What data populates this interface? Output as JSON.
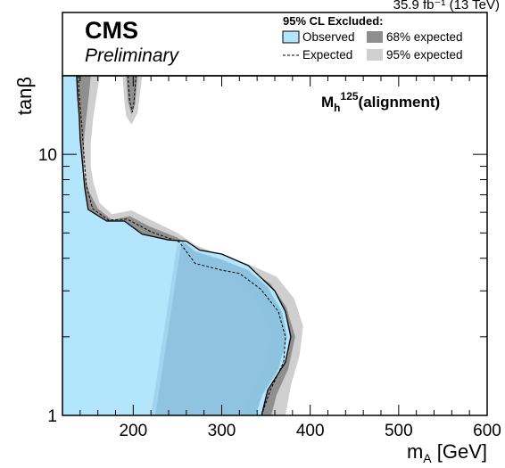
{
  "chart_data": {
    "type": "area",
    "top_label": "35.9 fb⁻¹ (13 TeV)",
    "xlabel": "m",
    "xlabel_sub": "A",
    "xlabel_unit": " [GeV]",
    "ylabel": "tanβ",
    "xlim": [
      120,
      600
    ],
    "ylim": [
      1,
      20
    ],
    "y_scale": "log",
    "x_ticks": [
      200,
      300,
      400,
      500,
      600
    ],
    "y_ticks": [
      {
        "value": 1,
        "label": "1"
      },
      {
        "value": 10,
        "label": "10"
      }
    ],
    "experiment": "CMS",
    "status": "Preliminary",
    "scenario": {
      "main": "M",
      "sub": "h",
      "sup": "125",
      "rest": "(alignment)"
    },
    "legend": {
      "title": "95% CL Excluded:",
      "position": "top-right",
      "items": [
        {
          "name": "Observed",
          "style": "filled",
          "color": "#b3e5fc"
        },
        {
          "name": "68% expected",
          "style": "filled",
          "color": "#8f8f8f"
        },
        {
          "name": "Expected",
          "style": "dashed-line",
          "color": "#000000"
        },
        {
          "name": "95% expected",
          "style": "filled",
          "color": "#cfcfcf"
        }
      ]
    },
    "series": [
      {
        "name": "95% expected",
        "color": "#cfcfcf",
        "boundary": [
          [
            162,
            20
          ],
          [
            160,
            18
          ],
          [
            155,
            14
          ],
          [
            152,
            11
          ],
          [
            152,
            9
          ],
          [
            155,
            7.8
          ],
          [
            162,
            6.5
          ],
          [
            176,
            5.9
          ],
          [
            198,
            6.1
          ],
          [
            220,
            5.6
          ],
          [
            250,
            5.0
          ],
          [
            270,
            4.5
          ],
          [
            300,
            4.1
          ],
          [
            330,
            3.8
          ],
          [
            362,
            3.4
          ],
          [
            382,
            2.8
          ],
          [
            392,
            2.2
          ],
          [
            388,
            1.7
          ],
          [
            378,
            1.3
          ],
          [
            372,
            1.0
          ]
        ]
      },
      {
        "name": "68% expected",
        "color": "#8f8f8f",
        "boundary": [
          [
            152,
            20
          ],
          [
            150,
            17
          ],
          [
            146,
            13
          ],
          [
            144,
            11
          ],
          [
            144,
            8.5
          ],
          [
            150,
            7.2
          ],
          [
            160,
            6.2
          ],
          [
            176,
            5.6
          ],
          [
            196,
            5.8
          ],
          [
            218,
            5.3
          ],
          [
            250,
            4.8
          ],
          [
            268,
            4.3
          ],
          [
            300,
            3.95
          ],
          [
            330,
            3.65
          ],
          [
            355,
            3.2
          ],
          [
            373,
            2.6
          ],
          [
            383,
            2.0
          ],
          [
            375,
            1.5
          ],
          [
            362,
            1.2
          ],
          [
            356,
            1.0
          ]
        ]
      },
      {
        "name": "Expected",
        "color": "#000000",
        "style": "dashed",
        "boundary": [
          [
            138,
            20
          ],
          [
            139,
            17
          ],
          [
            141,
            14
          ],
          [
            143,
            11.5
          ],
          [
            145,
            9.2
          ],
          [
            147,
            7.6
          ],
          [
            154,
            6.2
          ],
          [
            172,
            5.6
          ],
          [
            193,
            5.65
          ],
          [
            220,
            5.05
          ],
          [
            252,
            4.62
          ],
          [
            270,
            3.82
          ],
          [
            300,
            3.6
          ],
          [
            320,
            3.5
          ],
          [
            344,
            3.05
          ],
          [
            364,
            2.5
          ],
          [
            372,
            2.0
          ],
          [
            370,
            1.6
          ],
          [
            355,
            1.25
          ],
          [
            345,
            1.0
          ]
        ]
      },
      {
        "name": "Observed",
        "color": "#b3e5fc",
        "boundary": [
          [
            136,
            20
          ],
          [
            137,
            17
          ],
          [
            139,
            14
          ],
          [
            140,
            11.5
          ],
          [
            143,
            9
          ],
          [
            145,
            7.5
          ],
          [
            149,
            6.15
          ],
          [
            170,
            5.55
          ],
          [
            190,
            5.55
          ],
          [
            210,
            4.95
          ],
          [
            240,
            4.7
          ],
          [
            260,
            4.65
          ],
          [
            275,
            4.3
          ],
          [
            300,
            4.15
          ],
          [
            330,
            3.75
          ],
          [
            360,
            3.0
          ],
          [
            372,
            2.5
          ],
          [
            378,
            2.0
          ],
          [
            372,
            1.6
          ],
          [
            352,
            1.25
          ],
          [
            345,
            1.0
          ]
        ]
      }
    ],
    "band_below": [
      {
        "name": "Observed (dark overlay)",
        "color": "#6fa8c9",
        "boundary": [
          [
            255,
            4.7
          ],
          [
            270,
            4.25
          ],
          [
            300,
            3.95
          ],
          [
            330,
            3.6
          ],
          [
            352,
            3.1
          ],
          [
            368,
            2.5
          ],
          [
            374,
            2.0
          ],
          [
            364,
            1.5
          ],
          [
            346,
            1.2
          ],
          [
            338,
            1.0
          ]
        ]
      },
      {
        "name": "Observed (mid overlay)",
        "color": "#8fc3df",
        "boundary": [
          [
            250,
            4.6
          ],
          [
            262,
            4.1
          ],
          [
            290,
            3.7
          ],
          [
            315,
            3.4
          ],
          [
            335,
            2.9
          ],
          [
            350,
            2.4
          ],
          [
            357,
            2.0
          ],
          [
            348,
            1.5
          ],
          [
            332,
            1.2
          ],
          [
            325,
            1.0
          ]
        ]
      }
    ],
    "upper_island": {
      "name": "95% expected (upper)",
      "color": "#cfcfcf",
      "boundary": [
        [
          188,
          20
        ],
        [
          190,
          16
        ],
        [
          192,
          14
        ],
        [
          198,
          13
        ],
        [
          205,
          14.5
        ],
        [
          210,
          20
        ]
      ]
    },
    "upper_island_68": {
      "name": "68% expected (upper)",
      "color": "#8f8f8f",
      "boundary": [
        [
          192,
          20
        ],
        [
          194,
          16
        ],
        [
          198,
          14.2
        ],
        [
          202,
          15.5
        ],
        [
          205,
          20
        ]
      ]
    },
    "upper_island_exp": {
      "name": "Expected (upper)",
      "boundary": [
        [
          194,
          20
        ],
        [
          196,
          16
        ],
        [
          199,
          14.5
        ],
        [
          201,
          16
        ],
        [
          203,
          20
        ]
      ]
    }
  }
}
